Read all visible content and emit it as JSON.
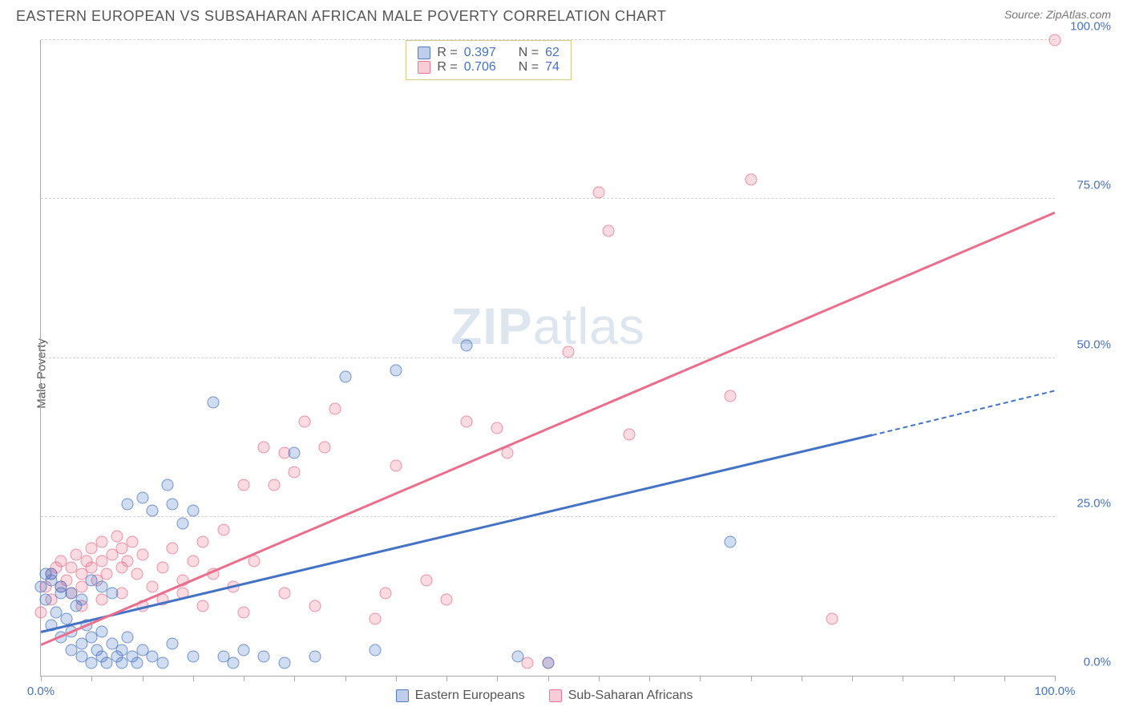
{
  "header": {
    "title": "EASTERN EUROPEAN VS SUBSAHARAN AFRICAN MALE POVERTY CORRELATION CHART",
    "source": "Source: ZipAtlas.com"
  },
  "axes": {
    "ylabel": "Male Poverty",
    "xlim": [
      0,
      100
    ],
    "ylim": [
      0,
      100
    ],
    "ytick_positions": [
      0,
      25,
      50,
      75,
      100
    ],
    "ytick_labels": [
      "0.0%",
      "25.0%",
      "50.0%",
      "75.0%",
      "100.0%"
    ],
    "xtick_positions": [
      0,
      5,
      10,
      15,
      20,
      25,
      30,
      35,
      40,
      45,
      50,
      55,
      60,
      65,
      70,
      75,
      80,
      85,
      90,
      95,
      100
    ],
    "xtick_labels": {
      "0": "0.0%",
      "100": "100.0%"
    },
    "grid_color": "#d0d0d0",
    "axis_color": "#aaaaaa",
    "tick_label_color": "#4472c4",
    "tick_label_fontsize": 15
  },
  "legend_top": {
    "border_color": "#d6c98a",
    "rows": [
      {
        "swatch": "blue",
        "r_label": "R =",
        "r_value": "0.397",
        "n_label": "N =",
        "n_value": "62"
      },
      {
        "swatch": "pink",
        "r_label": "R =",
        "r_value": "0.706",
        "n_label": "N =",
        "n_value": "74"
      }
    ]
  },
  "legend_bottom": {
    "items": [
      {
        "swatch": "blue",
        "label": "Eastern Europeans"
      },
      {
        "swatch": "pink",
        "label": "Sub-Saharan Africans"
      }
    ]
  },
  "watermark": {
    "part1": "ZIP",
    "part2": "atlas"
  },
  "series": {
    "blue": {
      "color": "#4472c4",
      "fill": "rgba(68,114,196,0.25)",
      "trend": {
        "x0": 0,
        "y0": 7,
        "x1": 82,
        "y1": 38,
        "dash_x1": 100,
        "dash_y1": 45
      },
      "points": [
        [
          0,
          14
        ],
        [
          0.5,
          12
        ],
        [
          1,
          16
        ],
        [
          1,
          8
        ],
        [
          1.5,
          10
        ],
        [
          2,
          13
        ],
        [
          2,
          6
        ],
        [
          2.5,
          9
        ],
        [
          3,
          7
        ],
        [
          3,
          4
        ],
        [
          3.5,
          11
        ],
        [
          4,
          5
        ],
        [
          4,
          3
        ],
        [
          4.5,
          8
        ],
        [
          5,
          6
        ],
        [
          5,
          2
        ],
        [
          5.5,
          4
        ],
        [
          6,
          3
        ],
        [
          6,
          7
        ],
        [
          6.5,
          2
        ],
        [
          7,
          5
        ],
        [
          7.5,
          3
        ],
        [
          8,
          4
        ],
        [
          8,
          2
        ],
        [
          8.5,
          6
        ],
        [
          9,
          3
        ],
        [
          9.5,
          2
        ],
        [
          10,
          4
        ],
        [
          10,
          28
        ],
        [
          11,
          3
        ],
        [
          11,
          26
        ],
        [
          12,
          2
        ],
        [
          12.5,
          30
        ],
        [
          13,
          5
        ],
        [
          13,
          27
        ],
        [
          14,
          24
        ],
        [
          15,
          3
        ],
        [
          15,
          26
        ],
        [
          17,
          43
        ],
        [
          18,
          3
        ],
        [
          19,
          2
        ],
        [
          20,
          4
        ],
        [
          22,
          3
        ],
        [
          24,
          2
        ],
        [
          25,
          35
        ],
        [
          27,
          3
        ],
        [
          30,
          47
        ],
        [
          33,
          4
        ],
        [
          35,
          48
        ],
        [
          42,
          52
        ],
        [
          47,
          3
        ],
        [
          50,
          2
        ],
        [
          68,
          21
        ],
        [
          0.5,
          16
        ],
        [
          1,
          15
        ],
        [
          2,
          14
        ],
        [
          3,
          13
        ],
        [
          4,
          12
        ],
        [
          5,
          15
        ],
        [
          6,
          14
        ],
        [
          7,
          13
        ],
        [
          8.5,
          27
        ]
      ]
    },
    "pink": {
      "color": "#eb6e8c",
      "fill": "rgba(235,110,140,0.25)",
      "trend": {
        "x0": 0,
        "y0": 5,
        "x1": 100,
        "y1": 73
      },
      "points": [
        [
          0,
          10
        ],
        [
          0.5,
          14
        ],
        [
          1,
          16
        ],
        [
          1,
          12
        ],
        [
          1.5,
          17
        ],
        [
          2,
          14
        ],
        [
          2,
          18
        ],
        [
          2.5,
          15
        ],
        [
          3,
          17
        ],
        [
          3,
          13
        ],
        [
          3.5,
          19
        ],
        [
          4,
          16
        ],
        [
          4,
          14
        ],
        [
          4.5,
          18
        ],
        [
          5,
          17
        ],
        [
          5,
          20
        ],
        [
          5.5,
          15
        ],
        [
          6,
          18
        ],
        [
          6,
          21
        ],
        [
          6.5,
          16
        ],
        [
          7,
          19
        ],
        [
          7.5,
          22
        ],
        [
          8,
          17
        ],
        [
          8,
          20
        ],
        [
          8.5,
          18
        ],
        [
          9,
          21
        ],
        [
          9.5,
          16
        ],
        [
          10,
          19
        ],
        [
          11,
          14
        ],
        [
          12,
          17
        ],
        [
          13,
          20
        ],
        [
          14,
          15
        ],
        [
          15,
          18
        ],
        [
          16,
          21
        ],
        [
          17,
          16
        ],
        [
          18,
          23
        ],
        [
          19,
          14
        ],
        [
          20,
          10
        ],
        [
          21,
          18
        ],
        [
          22,
          36
        ],
        [
          23,
          30
        ],
        [
          24,
          13
        ],
        [
          25,
          32
        ],
        [
          26,
          40
        ],
        [
          27,
          11
        ],
        [
          28,
          36
        ],
        [
          29,
          42
        ],
        [
          33,
          9
        ],
        [
          34,
          13
        ],
        [
          35,
          33
        ],
        [
          38,
          15
        ],
        [
          40,
          12
        ],
        [
          42,
          40
        ],
        [
          45,
          39
        ],
        [
          46,
          35
        ],
        [
          48,
          2
        ],
        [
          50,
          2
        ],
        [
          52,
          51
        ],
        [
          55,
          76
        ],
        [
          56,
          70
        ],
        [
          58,
          38
        ],
        [
          68,
          44
        ],
        [
          70,
          78
        ],
        [
          78,
          9
        ],
        [
          100,
          100
        ],
        [
          4,
          11
        ],
        [
          6,
          12
        ],
        [
          8,
          13
        ],
        [
          10,
          11
        ],
        [
          12,
          12
        ],
        [
          14,
          13
        ],
        [
          16,
          11
        ],
        [
          20,
          30
        ],
        [
          24,
          35
        ]
      ]
    }
  }
}
